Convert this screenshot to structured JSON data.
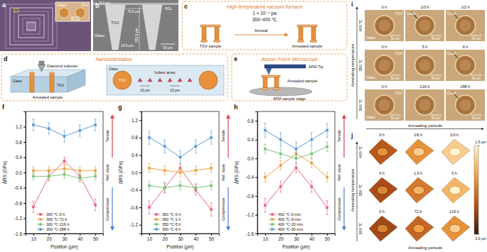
{
  "chart_data": [
    {
      "type": "line",
      "panel_label": "f",
      "x_label": "Position (μm)",
      "y_label": "ΔRS (GPa)",
      "x": [
        10,
        20,
        30,
        40,
        50
      ],
      "xlim": [
        5,
        55
      ],
      "xticks": [
        10,
        20,
        30,
        40,
        50
      ],
      "ylim": [
        -1.6,
        1.6
      ],
      "yticks": [
        -1.6,
        -1.2,
        -0.8,
        -0.4,
        {
          "value": 0,
          "label": "0.0"
        },
        0.4,
        0.8,
        1.2
      ],
      "marker": "square",
      "legend": "lower left",
      "annotations": [
        "Tensile",
        "Ref. state",
        "Compressive"
      ],
      "series": [
        {
          "name": "300 ℃-0 h",
          "color": "#e8647c",
          "values": [
            -0.9,
            -0.1,
            0.3,
            -0.1,
            -0.85
          ],
          "errors": [
            0.15,
            0.12,
            0.1,
            0.12,
            0.15
          ]
        },
        {
          "name": "300 ℃-72 h",
          "color": "#f0a040",
          "values": [
            0.05,
            0.05,
            0.1,
            0.05,
            0.05
          ],
          "errors": [
            0.1,
            0.1,
            0.1,
            0.1,
            0.1
          ]
        },
        {
          "name": "300 ℃-216 h",
          "color": "#7cc47c",
          "values": [
            -0.1,
            -0.1,
            -0.05,
            -0.15,
            -0.1
          ],
          "errors": [
            0.1,
            0.1,
            0.1,
            0.1,
            0.1
          ]
        },
        {
          "name": "300 ℃-288 h",
          "color": "#5b9bd5",
          "values": [
            1.25,
            1.15,
            0.95,
            1.1,
            1.25
          ],
          "errors": [
            0.15,
            0.15,
            0.15,
            0.15,
            0.15
          ]
        }
      ]
    },
    {
      "type": "line",
      "panel_label": "g",
      "x_label": "Position (μm)",
      "y_label": "ΔRS (GPa)",
      "x": [
        10,
        20,
        30,
        40,
        50
      ],
      "xlim": [
        5,
        55
      ],
      "xticks": [
        10,
        20,
        30,
        40,
        50
      ],
      "ylim": [
        -1.4,
        1.4
      ],
      "yticks": [
        -1.2,
        -0.8,
        -0.4,
        {
          "value": 0,
          "label": "0.0"
        },
        0.4,
        0.8,
        1.2
      ],
      "marker": "square",
      "legend": "lower left",
      "annotations": [
        "Tensile",
        "Ref. state",
        "Compressive"
      ],
      "series": [
        {
          "name": "350 ℃-0 h",
          "color": "#e8647c",
          "values": [
            -0.8,
            -0.35,
            0.1,
            -0.4,
            -0.85
          ],
          "errors": [
            0.15,
            0.12,
            0.1,
            0.12,
            0.15
          ]
        },
        {
          "name": "350 ℃-1 h",
          "color": "#f0a040",
          "values": [
            0.1,
            0.05,
            0.0,
            0.05,
            0.1
          ],
          "errors": [
            0.1,
            0.1,
            0.1,
            0.1,
            0.1
          ]
        },
        {
          "name": "350 ℃-5 h",
          "color": "#7cc47c",
          "values": [
            -0.3,
            -0.35,
            -0.3,
            -0.35,
            -0.3
          ],
          "errors": [
            0.1,
            0.1,
            0.1,
            0.1,
            0.1
          ]
        },
        {
          "name": "350 ℃-6 h",
          "color": "#5b9bd5",
          "values": [
            0.8,
            0.6,
            0.35,
            0.6,
            0.8
          ],
          "errors": [
            0.15,
            0.15,
            0.15,
            0.15,
            0.15
          ]
        }
      ]
    },
    {
      "type": "line",
      "panel_label": "h",
      "x_label": "Position (μm)",
      "y_label": "ΔRS (GPa)",
      "x": [
        10,
        20,
        30,
        40,
        50
      ],
      "xlim": [
        5,
        55
      ],
      "xticks": [
        10,
        20,
        30,
        40,
        50
      ],
      "ylim": [
        -1.6,
        1.0
      ],
      "yticks": [
        -1.6,
        -1.2,
        -0.8,
        -0.4,
        {
          "value": 0,
          "label": "0.0"
        },
        0.4,
        0.8
      ],
      "marker": "square",
      "legend": "lower left",
      "annotations": [
        "Tensile",
        "Ref. state",
        "Compressive"
      ],
      "series": [
        {
          "name": "400 ℃-0 min",
          "color": "#e8647c",
          "values": [
            -1.0,
            -0.6,
            -0.2,
            -0.6,
            -1.05
          ],
          "errors": [
            0.15,
            0.12,
            0.1,
            0.12,
            0.15
          ]
        },
        {
          "name": "400 ℃-9 min",
          "color": "#f0a040",
          "values": [
            -0.4,
            -0.15,
            0.1,
            -0.1,
            -0.4
          ],
          "errors": [
            0.1,
            0.1,
            0.1,
            0.1,
            0.1
          ]
        },
        {
          "name": "400 ℃-20 min",
          "color": "#7cc47c",
          "values": [
            0.2,
            0.1,
            0.0,
            0.1,
            0.25
          ],
          "errors": [
            0.1,
            0.1,
            0.1,
            0.1,
            0.1
          ]
        },
        {
          "name": "400 ℃-30 min",
          "color": "#5b9bd5",
          "values": [
            0.6,
            0.4,
            0.2,
            0.4,
            0.6
          ],
          "errors": [
            0.15,
            0.15,
            0.15,
            0.15,
            0.15
          ]
        }
      ]
    }
  ],
  "figure": {
    "a": {
      "label": "a",
      "material": "Glass",
      "via": "TGV",
      "scale": "50 μm"
    },
    "b": {
      "label": "b",
      "top": "5.7 μm",
      "width_top": "70.0 μm",
      "layer": "RDL",
      "via": "TGV",
      "depth": "283.6 μm",
      "material": "Glass",
      "width_bottom": "16.6 μm",
      "scale": "50 μm"
    },
    "c": {
      "label": "c",
      "title": "High-temperature vacuum furnace",
      "pressure": "1 × 10⁻⁴ pa",
      "temperature": "300~400 ℃",
      "before": "TGV sample",
      "process": "Anneal",
      "after": "Annealed sample"
    },
    "d": {
      "label": "d",
      "title": "Nanoindentation",
      "indenter": "Diamond indenter",
      "material": "Glass",
      "via": "TGV",
      "sample": "Annealed sample",
      "array": "Indent array",
      "spacing_x": "10 μm",
      "spacing_y": "10 μm"
    },
    "e": {
      "label": "e",
      "title": "Atomic Force Microscope",
      "tip": "AFM Tip",
      "sample": "Annealed sample",
      "stage": "AFM sample stage"
    },
    "i": {
      "label": "i",
      "y_label": "Annealing temperature",
      "x_label": "Annealing periods",
      "material": "Glass",
      "via": "TGV",
      "scale": "50 μm",
      "crack": "Crack",
      "rows": [
        {
          "temperature": "400 ℃",
          "periods": [
            "0 h",
            "1/3 h",
            "1/2 h"
          ],
          "cracked": [
            false,
            true,
            true
          ]
        },
        {
          "temperature": "350 ℃",
          "periods": [
            "0 h",
            "5 h",
            "6 h"
          ],
          "cracked": [
            false,
            false,
            true
          ]
        },
        {
          "temperature": "300 ℃",
          "periods": [
            "0 h",
            "216 h",
            "288 h"
          ],
          "cracked": [
            false,
            false,
            true
          ]
        }
      ]
    },
    "j": {
      "label": "j",
      "y_label": "Annealing temperature",
      "x_label": "Annealing periods",
      "rows": [
        {
          "temperature": "400 ℃",
          "periods": [
            "0 h",
            "1/6 h",
            "1/3 h"
          ]
        },
        {
          "temperature": "350 ℃",
          "periods": [
            "0 h",
            "1.5 h",
            "5 h"
          ]
        },
        {
          "temperature": "300 ℃",
          "periods": [
            "0 h",
            "72 h",
            "216 h"
          ]
        }
      ],
      "colorbar": {
        "range": [
          -3.0,
          1.5
        ],
        "ticks": [
          {
            "value": 1.5,
            "label": "1.5 μm"
          },
          {
            "value": -3.0,
            "label": "-3.0 μm"
          }
        ]
      }
    }
  }
}
